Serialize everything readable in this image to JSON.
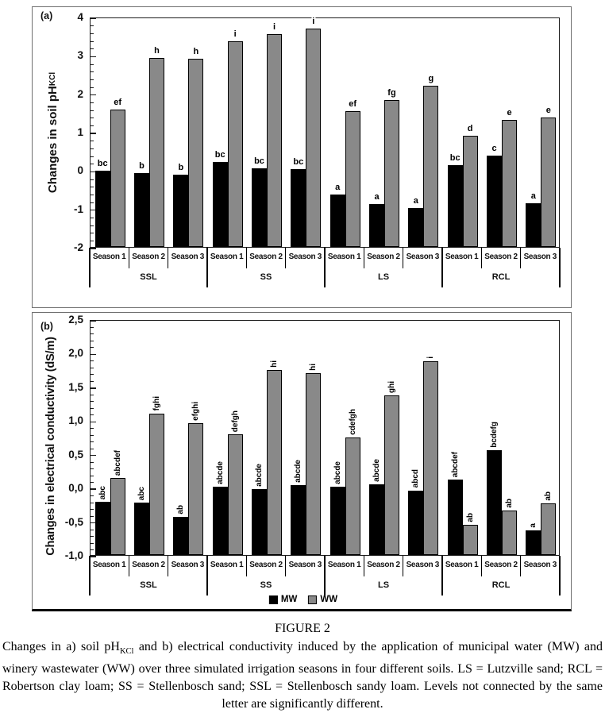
{
  "panel_a": {
    "label": "(a)",
    "ylabel_main": "Changes in soil pH",
    "ylabel_sub": "KCl"
  },
  "panel_b": {
    "label": "(b)",
    "ylabel_main": "Changes in electrical conductivity (dS/m)"
  },
  "colors": {
    "mw": "#000000",
    "ww": "#898989"
  },
  "legend": {
    "items": [
      {
        "label": "MW",
        "color": "#000000"
      },
      {
        "label": "WW",
        "color": "#898989"
      }
    ]
  },
  "chart_data": [
    {
      "type": "bar",
      "panel": "a",
      "ylabel": "Changes in soil pH(KCl subscript)",
      "ylim": [
        -2,
        4
      ],
      "ytick_step": 1,
      "minor_tick_step": 0.2,
      "ytick_labels": [
        "4",
        "3",
        "2",
        "1",
        "0",
        "-1",
        "-2"
      ],
      "bars_drawn_from_axis_min": true,
      "grid": false,
      "groups": [
        "SSL",
        "SS",
        "LS",
        "RCL"
      ],
      "categories_per_group": [
        "Season 1",
        "Season 2",
        "Season 3"
      ],
      "letter_orientation": "horizontal",
      "series": [
        {
          "name": "MW",
          "values": [
            -0.02,
            -0.08,
            -0.12,
            0.21,
            0.05,
            0.02,
            -0.64,
            -0.89,
            -0.99,
            0.14,
            0.37,
            -0.86
          ],
          "letters": [
            "bc",
            "b",
            "b",
            "bc",
            "bc",
            "bc",
            "a",
            "a",
            "a",
            "bc",
            "c",
            "a"
          ]
        },
        {
          "name": "WW",
          "values": [
            1.57,
            2.93,
            2.9,
            3.35,
            3.55,
            3.7,
            1.53,
            1.83,
            2.21,
            0.89,
            1.31,
            1.37
          ],
          "letters": [
            "ef",
            "h",
            "h",
            "i",
            "i",
            "i",
            "ef",
            "fg",
            "g",
            "d",
            "e",
            "e"
          ]
        }
      ]
    },
    {
      "type": "bar",
      "panel": "b",
      "ylabel": "Changes in electrical conductivity (dS/m)",
      "ylim": [
        -1.0,
        2.5
      ],
      "ytick_step": 0.5,
      "minor_tick_step": 0.1,
      "ytick_labels": [
        "2,5",
        "2,0",
        "1,5",
        "1,0",
        "0,5",
        "0,0",
        "-0,5",
        "-1,0"
      ],
      "decimal_separator": "comma",
      "bars_drawn_from_axis_min": true,
      "grid": false,
      "groups": [
        "SSL",
        "SS",
        "LS",
        "RCL"
      ],
      "categories_per_group": [
        "Season 1",
        "Season 2",
        "Season 3"
      ],
      "letter_orientation": "vertical",
      "legend_position": "bottom-center",
      "series": [
        {
          "name": "MW",
          "values": [
            -0.21,
            -0.22,
            -0.43,
            0.01,
            -0.02,
            0.04,
            0.01,
            0.05,
            -0.04,
            0.12,
            0.56,
            -0.63
          ],
          "letters": [
            "abc",
            "abc",
            "ab",
            "abcde",
            "abcde",
            "abcde",
            "abcde",
            "abcde",
            "abcd",
            "abcdef",
            "bcdefg",
            "a"
          ]
        },
        {
          "name": "WW",
          "values": [
            0.14,
            1.1,
            0.96,
            0.79,
            1.75,
            1.7,
            0.75,
            1.37,
            1.88,
            -0.55,
            -0.34,
            -0.23
          ],
          "letters": [
            "abcdef",
            "fghi",
            "efghi",
            "defgh",
            "hi",
            "hi",
            "cdefgh",
            "ghi",
            "i",
            "ab",
            "ab",
            "ab"
          ]
        }
      ]
    }
  ],
  "caption": {
    "title": "FIGURE 2",
    "p1": "Changes in a) soil pH",
    "sub": "KCl",
    "p2": " and b) electrical conductivity induced by the application of municipal water (MW) and winery wastewater (WW) over three simulated irrigation seasons in four different soils. LS = Lutzville sand; RCL = Robertson clay loam; SS = Stellenbosch sand; SSL = Stellenbosch sandy loam. Levels not connected by the same letter are significantly different."
  }
}
